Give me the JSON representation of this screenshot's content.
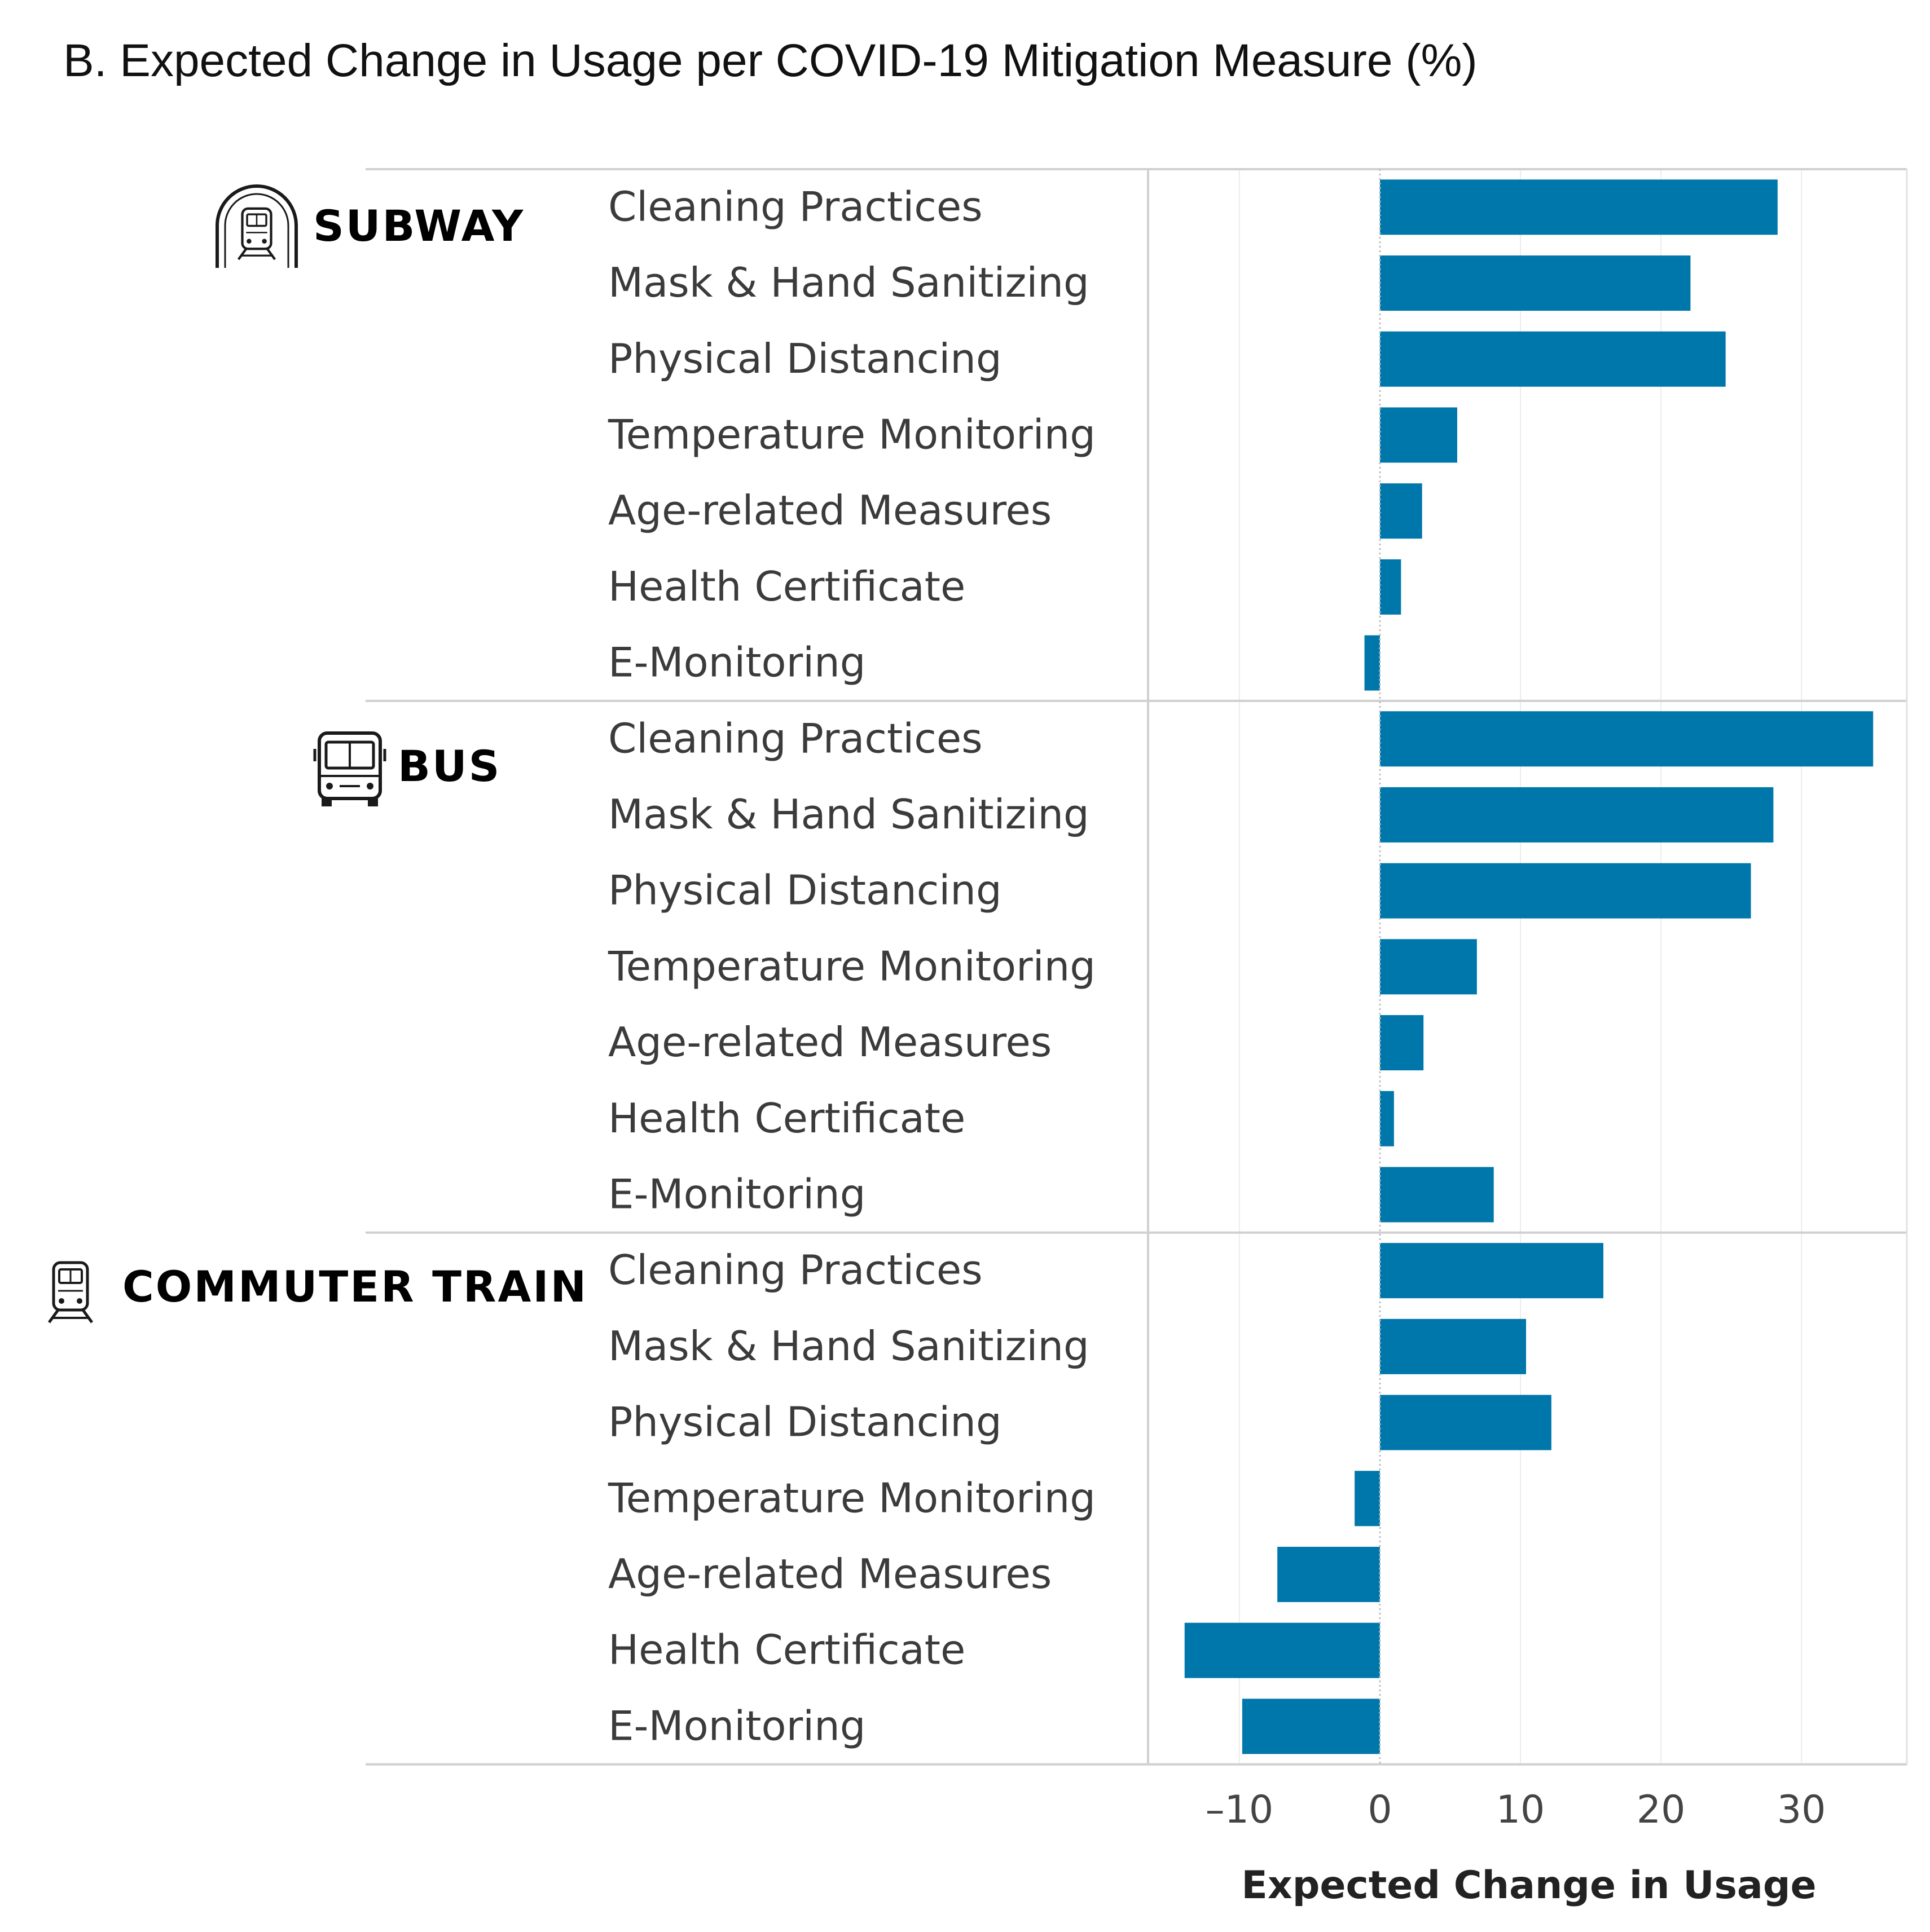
{
  "chart_data": {
    "type": "bar",
    "orientation": "horizontal",
    "title": "B. Expected Change in Usage per COVID-19 Mitigation Measure (%)",
    "xlabel": "Expected Change in Usage",
    "ylabel": "",
    "xlim": [
      -16.5,
      37.5
    ],
    "xticks": [
      -10,
      0,
      10,
      20,
      30
    ],
    "xtick_labels": [
      "–10",
      "0",
      "10",
      "20",
      "30"
    ],
    "bar_color": "#0077aa",
    "categories": [
      "Cleaning Practices",
      "Mask & Hand Sanitizing",
      "Physical Distancing",
      "Temperature Monitoring",
      "Age-related Measures",
      "Health Certificate",
      "E-Monitoring"
    ],
    "groups": [
      {
        "name": "SUBWAY",
        "icon": "subway-icon",
        "values": [
          28.3,
          22.1,
          24.6,
          5.5,
          3.0,
          1.5,
          -1.1
        ]
      },
      {
        "name": "BUS",
        "icon": "bus-icon",
        "values": [
          35.1,
          28.0,
          26.4,
          6.9,
          3.1,
          1.0,
          8.1
        ]
      },
      {
        "name": "COMMUTER TRAIN",
        "icon": "commuter-train-icon",
        "values": [
          15.9,
          10.4,
          12.2,
          -1.8,
          -7.3,
          -13.9,
          -9.8
        ]
      }
    ]
  }
}
